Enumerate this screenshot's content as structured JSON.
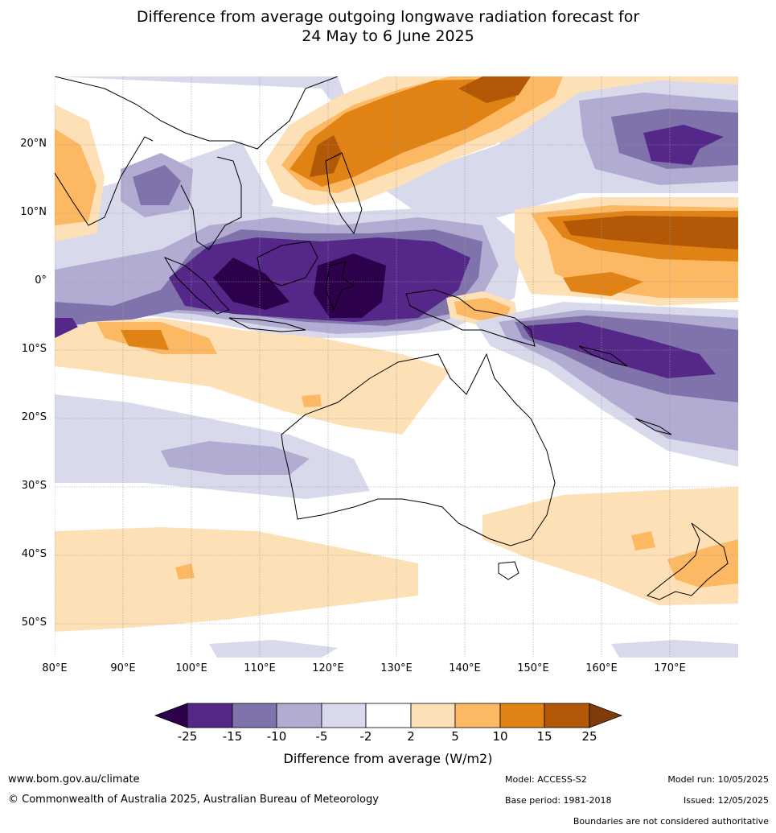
{
  "header": {
    "title_line1": "Difference from average outgoing longwave radiation forecast for",
    "title_line2": "24 May to 6 June 2025"
  },
  "map": {
    "lat_labels": [
      "20°N",
      "10°N",
      "0°",
      "10°S",
      "20°S",
      "30°S",
      "40°S",
      "50°S"
    ],
    "lon_labels": [
      "80°E",
      "90°E",
      "100°E",
      "110°E",
      "120°E",
      "130°E",
      "140°E",
      "150°E",
      "160°E",
      "170°E"
    ],
    "lat_range": [
      -55,
      30
    ],
    "lon_range": [
      80,
      180
    ],
    "gridlines": true
  },
  "colorbar": {
    "title": "Difference from average (W/m2)",
    "ticks": [
      "-25",
      "-15",
      "-10",
      "-5",
      "-2",
      "2",
      "5",
      "10",
      "15",
      "25"
    ],
    "colors": {
      "below_min": "#2d004b",
      "c1": "#542788",
      "c2": "#8073ac",
      "c3": "#b2abd2",
      "c4": "#d8daeb",
      "c5": "#ffffff",
      "c6": "#fee0b6",
      "c7": "#fdb863",
      "c8": "#e08214",
      "c9": "#b35806",
      "above_max": "#7f3b08"
    }
  },
  "footer": {
    "site_url": "www.bom.gov.au/climate",
    "copyright": "© Commonwealth of Australia 2025, Australian Bureau of Meteorology",
    "model": "Model: ACCESS-S2",
    "base_period": "Base period: 1981-2018",
    "model_run": "Model run: 10/05/2025",
    "issued": "Issued: 12/05/2025",
    "disclaimer": "Boundaries are not considered authoritative"
  }
}
